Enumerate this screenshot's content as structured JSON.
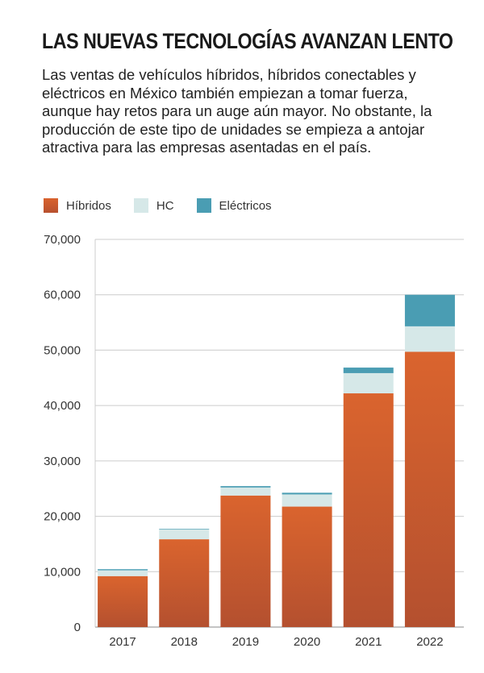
{
  "title": "LAS NUEVAS TECNOLOGÍAS AVANZAN LENTO",
  "subtitle": "Las ventas de vehículos híbridos, híbridos conectables y eléctricos en México también empiezan a tomar fuerza, aunque hay retos para un auge aún mayor. No obstante, la producción de este tipo de unidades se empieza a antojar atractiva para las empresas asentadas en el país.",
  "chart_data": {
    "type": "bar",
    "stacked": true,
    "categories": [
      "2017",
      "2018",
      "2019",
      "2020",
      "2021",
      "2022"
    ],
    "series": [
      {
        "name": "Híbridos",
        "color": "#d4602f",
        "values": [
          9200,
          15850,
          23750,
          21750,
          42200,
          49700
        ]
      },
      {
        "name": "HC",
        "color": "#d6e8e8",
        "values": [
          1050,
          1800,
          1450,
          2200,
          3650,
          4600
        ]
      },
      {
        "name": "Eléctricos",
        "color": "#4a9db3",
        "values": [
          200,
          100,
          250,
          300,
          1000,
          5700
        ]
      }
    ],
    "yticks": [
      "0",
      "10,000",
      "20,000",
      "30,000",
      "40,000",
      "50,000",
      "60,000",
      "70,000"
    ],
    "ylim": [
      0,
      70000
    ],
    "grid": true,
    "legend_position": "top-left"
  }
}
